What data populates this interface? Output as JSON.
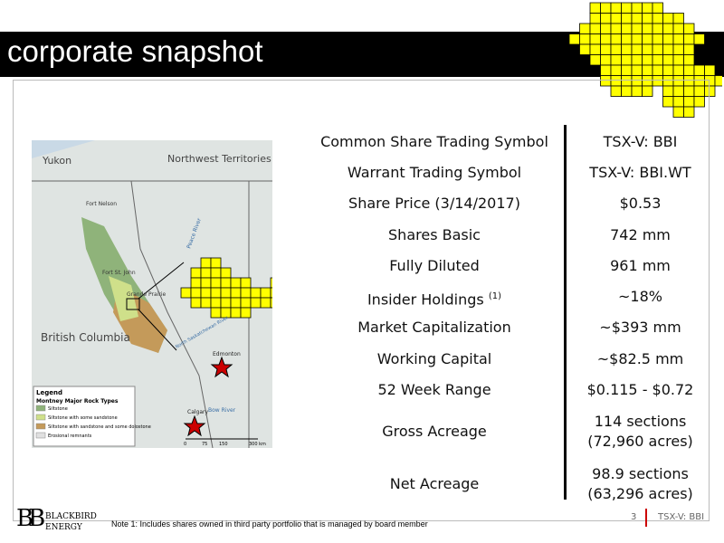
{
  "header": {
    "title": "corporate snapshot"
  },
  "map": {
    "labels": {
      "yukon": "Yukon",
      "nwt": "Northwest Territories",
      "fort_nelson": "Fort Nelson",
      "fort_st_john": "Fort St. John",
      "grande_prairie": "Grande Prairie",
      "bc": "British Columbia",
      "edmonton": "Edmonton",
      "calgary": "Calgary",
      "peace_river": "Peace River",
      "sask_river": "North Saskatchewan River",
      "bow_river": "Bow River"
    },
    "legend": {
      "title": "Legend",
      "subtitle": "Montney Major Rock Types",
      "items": [
        "Siltstone",
        "Siltstone with some sandstone",
        "Siltstone with sandstone and some dolostone",
        "Erosional remnants"
      ]
    },
    "scale": [
      "0",
      "75",
      "150",
      "300 km"
    ]
  },
  "table": {
    "rows": [
      {
        "label": "Common Share Trading Symbol",
        "value": [
          "TSX-V: BBI"
        ]
      },
      {
        "label": "Warrant Trading Symbol",
        "value": [
          "TSX-V: BBI.WT"
        ]
      },
      {
        "label": "Share Price (3/14/2017)",
        "value": [
          "$0.53"
        ]
      },
      {
        "label": "Shares Basic",
        "value": [
          "742 mm"
        ]
      },
      {
        "label": "Fully Diluted",
        "value": [
          "961 mm"
        ]
      },
      {
        "label": "Insider Holdings",
        "note": "(1)",
        "value": [
          "~18%"
        ]
      },
      {
        "label": "Market Capitalization",
        "value": [
          "~$393 mm"
        ]
      },
      {
        "label": "Working Capital",
        "value": [
          "~$82.5 mm"
        ]
      },
      {
        "label": "52 Week Range",
        "value": [
          "$0.115 - $0.72"
        ]
      },
      {
        "label": "Gross Acreage",
        "value": [
          "114 sections",
          "(72,960 acres)"
        ]
      },
      {
        "label": "Net Acreage",
        "value": [
          "98.9 sections",
          "(63,296 acres)"
        ]
      }
    ]
  },
  "footer": {
    "logo_mark": "BB",
    "logo_text": [
      "BLACKBIRD",
      "ENERGY"
    ],
    "note": "Note 1: Includes shares owned in third party portfolio that is managed by board member",
    "page": "3",
    "ticker": "TSX-V: BBI"
  }
}
